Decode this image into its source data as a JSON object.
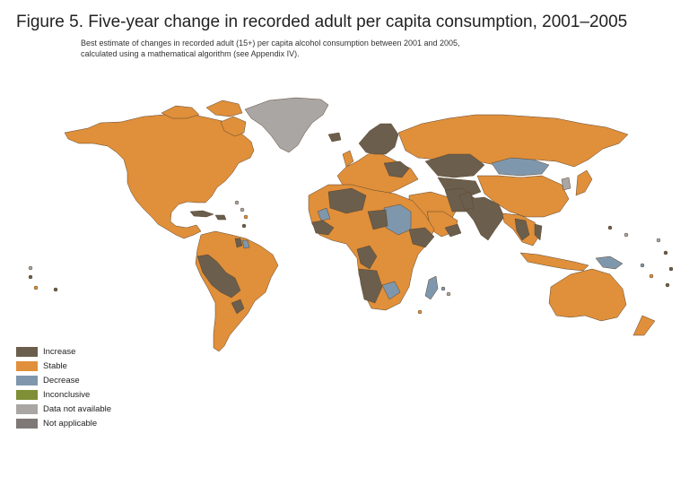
{
  "figure": {
    "title": "Figure 5. Five-year change in recorded adult per capita consumption, 2001–2005",
    "subtitle_line1": "Best estimate of changes in recorded adult (15+) per capita alcohol consumption between 2001 and 2005,",
    "subtitle_line2": "calculated using a mathematical algorithm (see Appendix IV)."
  },
  "colors": {
    "increase": "#6b5e4c",
    "stable": "#e08f3a",
    "decrease": "#7f97ac",
    "inconclusive": "#7f8f35",
    "data_not_available": "#aaa6a3",
    "not_applicable": "#7e7877",
    "border": "#5a4630"
  },
  "legend": {
    "items": [
      {
        "label": "Increase",
        "color": "#6b5e4c"
      },
      {
        "label": "Stable",
        "color": "#e08f3a"
      },
      {
        "label": "Decrease",
        "color": "#7f97ac"
      },
      {
        "label": "Inconclusive",
        "color": "#7f8f35"
      },
      {
        "label": "Data not available",
        "color": "#aaa6a3"
      },
      {
        "label": "Not applicable",
        "color": "#7e7877"
      }
    ]
  }
}
